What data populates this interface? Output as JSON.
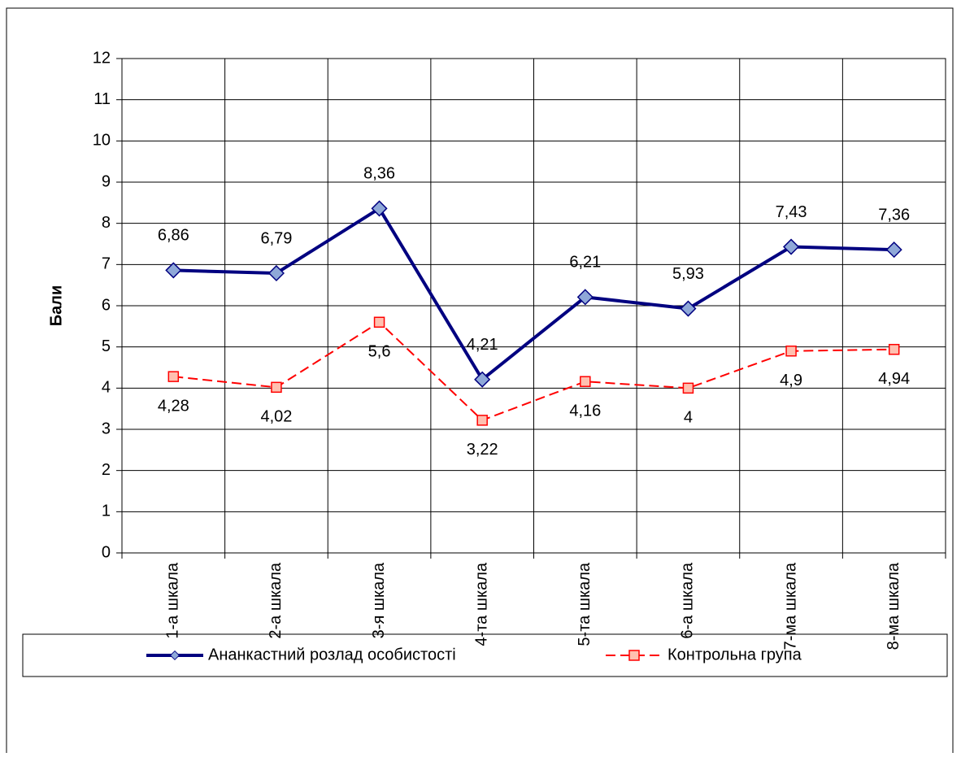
{
  "chart_data": {
    "type": "line",
    "categories": [
      "1-а шкала",
      "2-а шкала",
      "3-я шкала",
      "4-та шкала",
      "5-та шкала",
      "6-а шкала",
      "7-ма шкала",
      "8-ма шкала"
    ],
    "y_label": "Бали",
    "ylim": [
      0,
      12
    ],
    "yticks": [
      0,
      1,
      2,
      3,
      4,
      5,
      6,
      7,
      8,
      9,
      10,
      11,
      12
    ],
    "grid": true,
    "series": [
      {
        "name": "Ананкастний розлад особистості",
        "color": "#000080",
        "marker": "diamond",
        "marker_color": "#8fa8d8",
        "dashed": false,
        "values": [
          6.86,
          6.79,
          8.36,
          4.21,
          6.21,
          5.93,
          7.43,
          7.36
        ],
        "value_labels": [
          "6,86",
          "6,79",
          "8,36",
          "4,21",
          "6,21",
          "5,93",
          "7,43",
          "7,36"
        ],
        "label_position": "above"
      },
      {
        "name": "Контрольна група",
        "color": "#ff0000",
        "marker": "square",
        "marker_color": "#ffc0b0",
        "dashed": true,
        "values": [
          4.28,
          4.02,
          5.6,
          3.22,
          4.16,
          4,
          4.9,
          4.94
        ],
        "value_labels": [
          "4,28",
          "4,02",
          "5,6",
          "3,22",
          "4,16",
          "4",
          "4,9",
          "4,94"
        ],
        "label_position": "below"
      }
    ],
    "legend": "bottom"
  }
}
